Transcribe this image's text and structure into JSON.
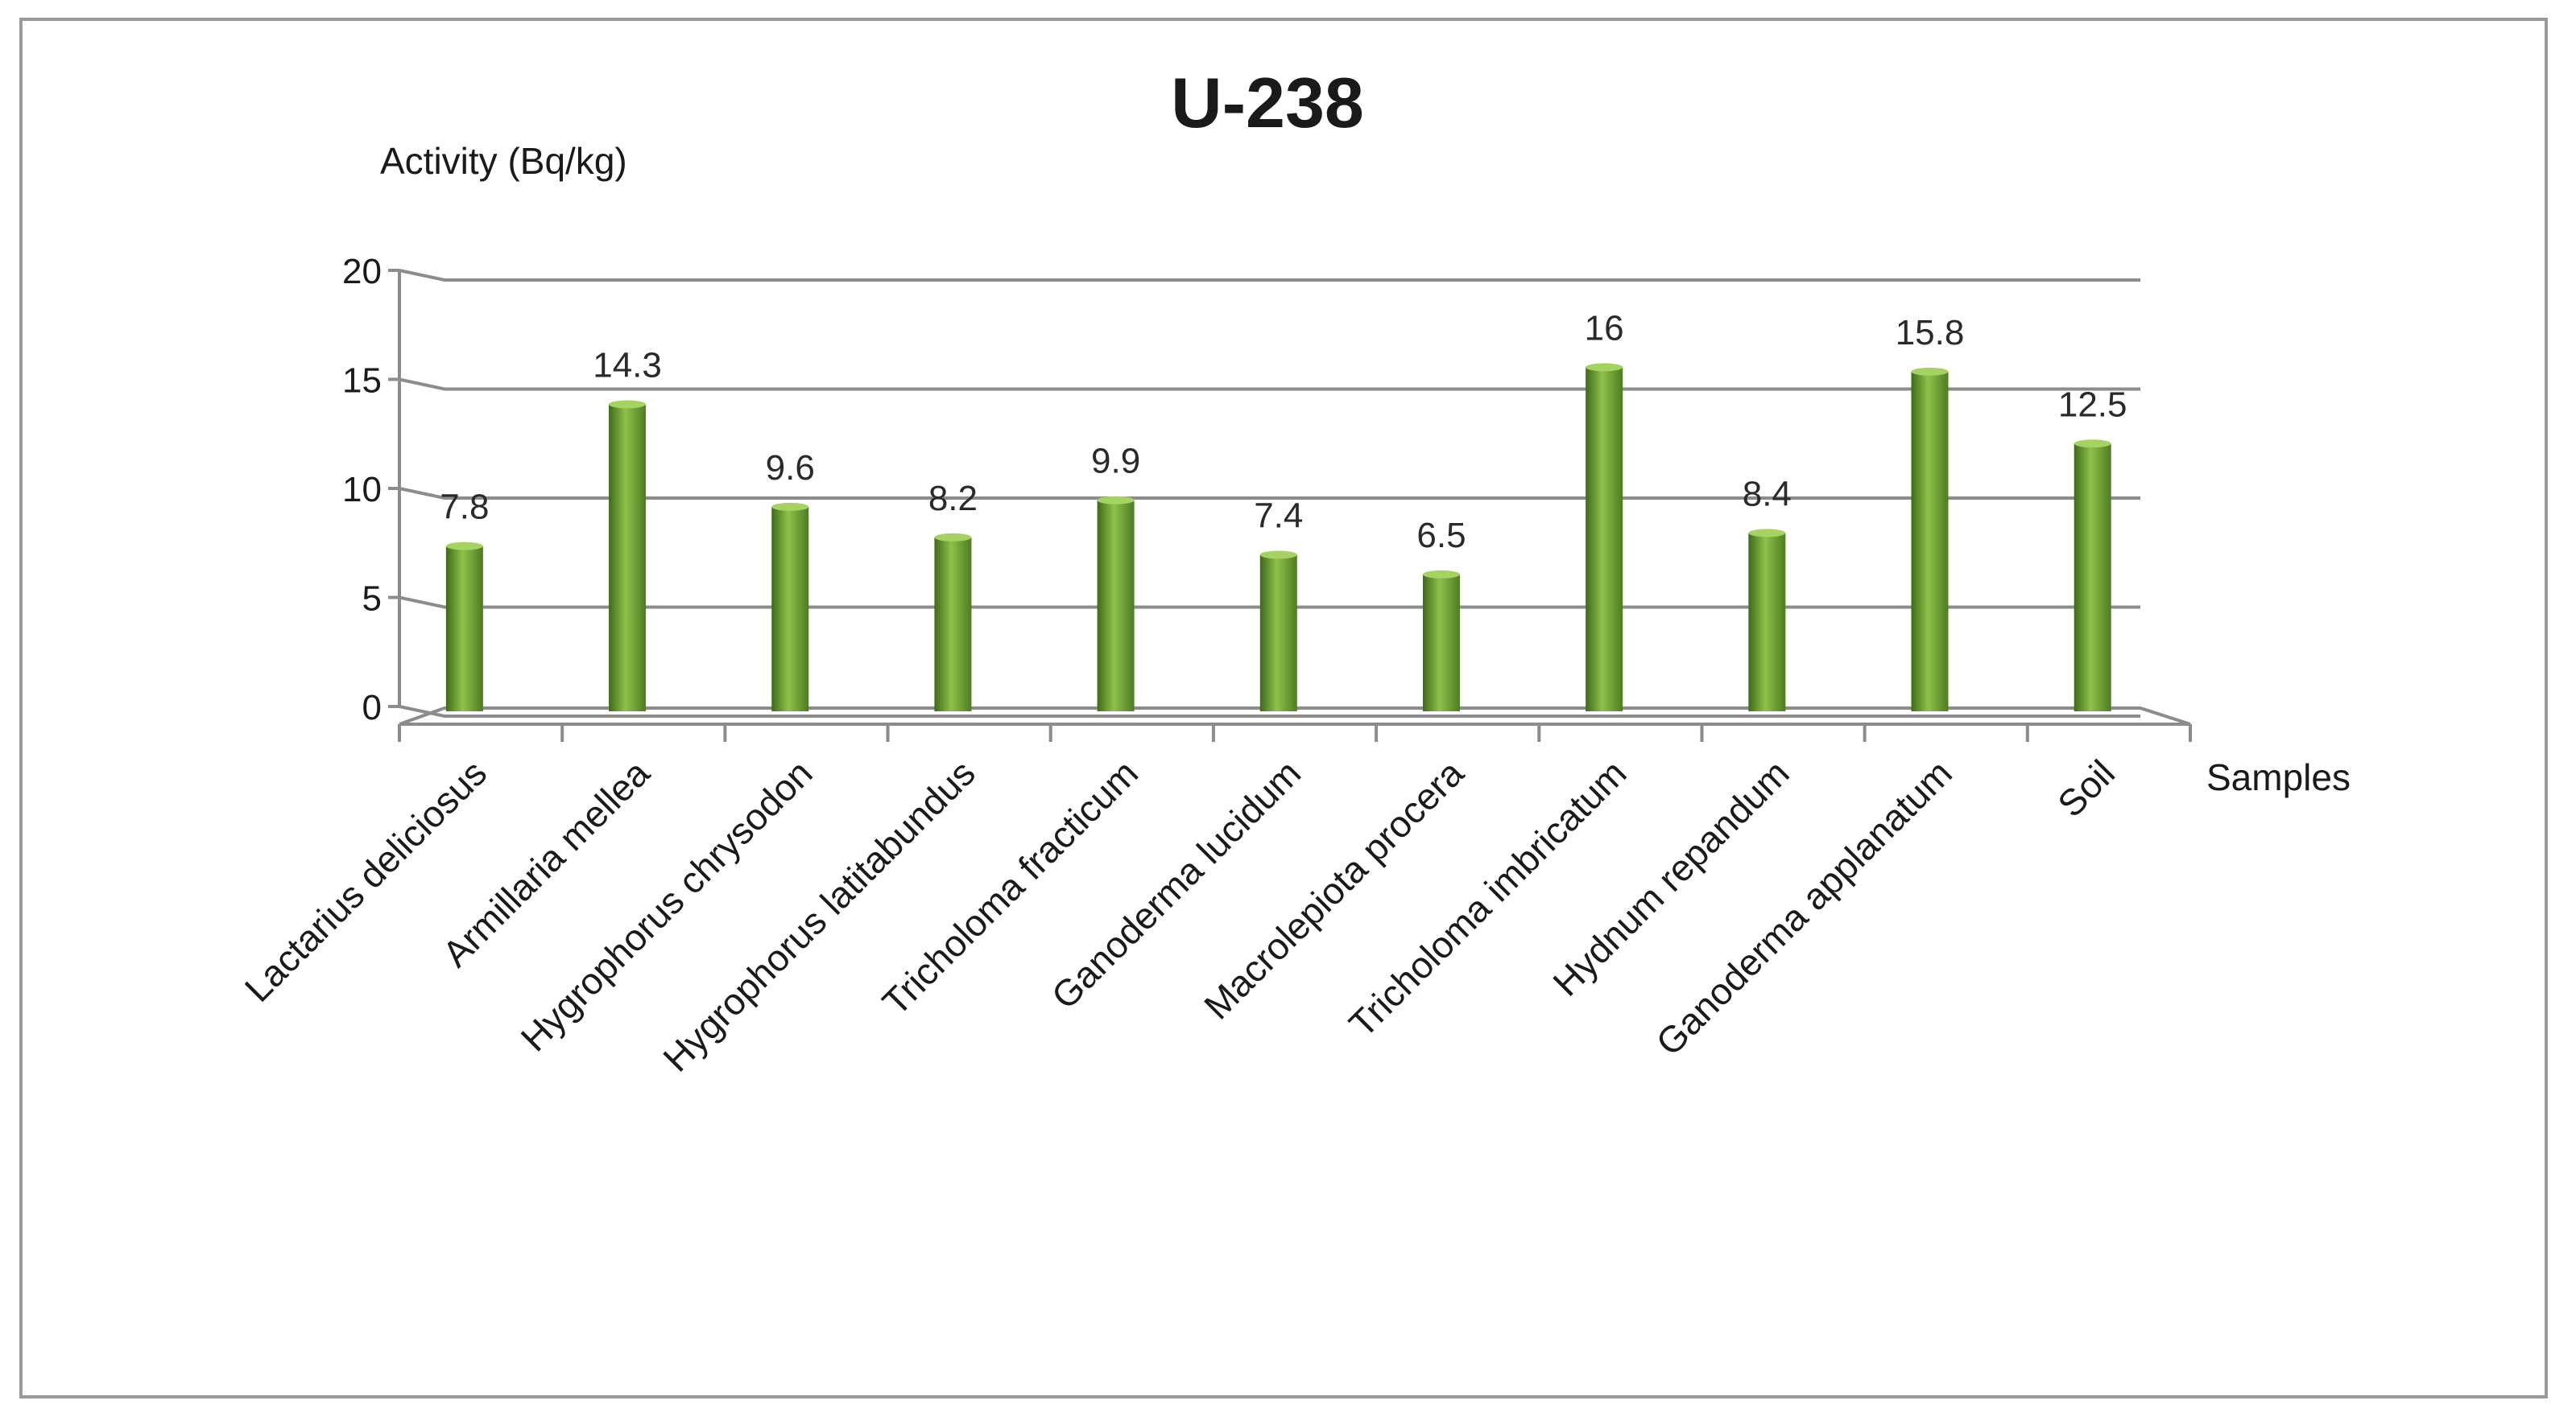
{
  "chart_data": {
    "type": "bar",
    "title": "U-238",
    "ylabel": "Activity (Bq/kg)",
    "xlabel": "Samples",
    "categories": [
      "Lactarius deliciosus",
      "Armillaria mellea",
      "Hygrophorus chrysodon",
      "Hygrophorus latitabundus",
      "Tricholoma fracticum",
      "Ganoderma lucidum",
      "Macrolepiota procera",
      "Tricholoma imbricatum",
      "Hydnum repandum",
      "Ganoderma applanatum",
      "Soil"
    ],
    "values": [
      7.8,
      14.3,
      9.6,
      8.2,
      9.9,
      7.4,
      6.5,
      16,
      8.4,
      15.8,
      12.5
    ],
    "data_labels": [
      "7.8",
      "14.3",
      "9.6",
      "8.2",
      "9.9",
      "7.4",
      "6.5",
      "16",
      "8.4",
      "15.8",
      "12.5"
    ],
    "ylim": [
      0,
      20
    ],
    "yticks": [
      "0",
      "5",
      "10",
      "15",
      "20"
    ],
    "grid": true,
    "legend": "none",
    "bar_color": "#76a535",
    "bar_dark_color": "#3f6a18"
  }
}
